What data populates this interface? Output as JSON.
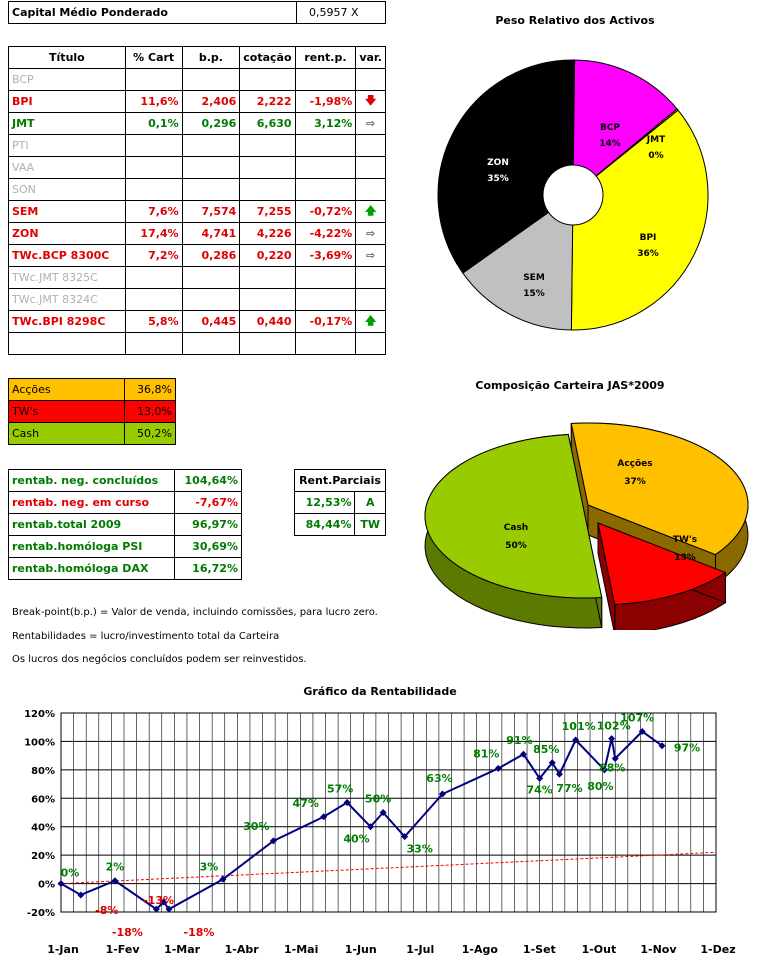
{
  "capital": {
    "label": "Capital Médio Ponderado",
    "value": "0,5957 X"
  },
  "portfolio_table": {
    "headers": [
      "Título",
      "% Cart",
      "b.p.",
      "cotação",
      "rent.p.",
      "var."
    ],
    "rows": [
      {
        "titulo": "BCP",
        "cart": "",
        "bp": "",
        "cotacao": "",
        "rent": "",
        "var": "",
        "color": "gray"
      },
      {
        "titulo": "BPI",
        "cart": "11,6%",
        "bp": "2,406",
        "cotacao": "2,222",
        "rent": "-1,98%",
        "var": "arrow-down",
        "color": "red"
      },
      {
        "titulo": "JMT",
        "cart": "0,1%",
        "bp": "0,296",
        "cotacao": "6,630",
        "rent": "3,12%",
        "var": "arrow-right",
        "color": "green"
      },
      {
        "titulo": "PTI",
        "cart": "",
        "bp": "",
        "cotacao": "",
        "rent": "",
        "var": "",
        "color": "gray"
      },
      {
        "titulo": "VAA",
        "cart": "",
        "bp": "",
        "cotacao": "",
        "rent": "",
        "var": "",
        "color": "gray"
      },
      {
        "titulo": "SON",
        "cart": "",
        "bp": "",
        "cotacao": "",
        "rent": "",
        "var": "",
        "color": "gray"
      },
      {
        "titulo": "SEM",
        "cart": "7,6%",
        "bp": "7,574",
        "cotacao": "7,255",
        "rent": "-0,72%",
        "var": "arrow-up",
        "color": "red"
      },
      {
        "titulo": "ZON",
        "cart": "17,4%",
        "bp": "4,741",
        "cotacao": "4,226",
        "rent": "-4,22%",
        "var": "arrow-right",
        "color": "red"
      },
      {
        "titulo": "TWc.BCP 8300C",
        "cart": "7,2%",
        "bp": "0,286",
        "cotacao": "0,220",
        "rent": "-3,69%",
        "var": "arrow-right",
        "color": "red"
      },
      {
        "titulo": "TWc.JMT 8325C",
        "cart": "",
        "bp": "",
        "cotacao": "",
        "rent": "",
        "var": "",
        "color": "gray"
      },
      {
        "titulo": "TWc.JMT 8324C",
        "cart": "",
        "bp": "",
        "cotacao": "",
        "rent": "",
        "var": "",
        "color": "gray"
      },
      {
        "titulo": "TWc.BPI 8298C",
        "cart": "5,8%",
        "bp": "0,445",
        "cotacao": "0,440",
        "rent": "-0,17%",
        "var": "arrow-up",
        "color": "red"
      },
      {
        "titulo": "",
        "cart": "",
        "bp": "",
        "cotacao": "",
        "rent": "",
        "var": "",
        "color": "gray"
      }
    ]
  },
  "allocation": [
    {
      "label": "Acções",
      "value": "36,8%",
      "bg": "#ffc000"
    },
    {
      "label": "TW's",
      "value": "13,0%",
      "bg": "#ff0000"
    },
    {
      "label": "Cash",
      "value": "50,2%",
      "bg": "#99cc00"
    }
  ],
  "returns": [
    {
      "label": "rentab. neg. concluídos",
      "value": "104,64%",
      "color": "green"
    },
    {
      "label": "rentab. neg. em curso",
      "value": "-7,67%",
      "color": "red"
    },
    {
      "label": "rentab.total 2009",
      "value": "96,97%",
      "color": "green"
    },
    {
      "label": "rentab.homóloga PSI",
      "value": "30,69%",
      "color": "green"
    },
    {
      "label": "rentab.homóloga DAX",
      "value": "16,72%",
      "color": "green"
    }
  ],
  "partials": {
    "header": "Rent.Parciais",
    "rows": [
      {
        "value": "12,53%",
        "code": "A"
      },
      {
        "value": "84,44%",
        "code": "TW"
      }
    ]
  },
  "notes": [
    "Break-point(b.p.) = Valor de venda, incluindo comissões, para lucro zero.",
    "Rentabilidades = lucro/investimento total da Carteira",
    "Os lucros dos negócios concluídos podem ser reinvestidos."
  ],
  "chart_data": [
    {
      "type": "pie",
      "title": "Peso Relativo dos Activos",
      "style": "doughnut",
      "categories": [
        "BCP",
        "JMT",
        "BPI",
        "SEM",
        "ZON"
      ],
      "values": [
        14,
        0,
        36,
        15,
        35
      ],
      "labels": [
        "14%",
        "0%",
        "36%",
        "15%",
        "35%"
      ],
      "colors": [
        "#ff00ff",
        "#99cc00",
        "#ffff00",
        "#c0c0c0",
        "#000000"
      ]
    },
    {
      "type": "pie",
      "title": "Composição Carteira JAS*2009",
      "style": "3d-exploded",
      "categories": [
        "Acções",
        "TW's",
        "Cash"
      ],
      "values": [
        37,
        13,
        50
      ],
      "labels": [
        "37%",
        "13%",
        "50%"
      ],
      "colors": [
        "#ffc000",
        "#ff0000",
        "#99cc00"
      ]
    },
    {
      "type": "line",
      "title": "Gráfico da Rentabilidade",
      "x_ticks": [
        "1-Jan",
        "1-Fev",
        "1-Mar",
        "1-Abr",
        "1-Mai",
        "1-Jun",
        "1-Jul",
        "1-Ago",
        "1-Set",
        "1-Out",
        "1-Nov",
        "1-Dez"
      ],
      "y_ticks": [
        "-20%",
        "0%",
        "20%",
        "40%",
        "60%",
        "80%",
        "100%",
        "120%"
      ],
      "ylim": [
        -20,
        120
      ],
      "grid": true,
      "series": [
        {
          "color": "#000080",
          "points": [
            {
              "x": "2009-01-01",
              "y": 0,
              "label": "0%"
            },
            {
              "x": "2009-01-12",
              "y": -8,
              "label": "-8%"
            },
            {
              "x": "2009-01-31",
              "y": 2,
              "label": "2%"
            },
            {
              "x": "2009-02-23",
              "y": -18,
              "label": "-18%"
            },
            {
              "x": "2009-02-27",
              "y": -13,
              "label": "-13%"
            },
            {
              "x": "2009-03-02",
              "y": -18,
              "label": "-18%"
            },
            {
              "x": "2009-04-01",
              "y": 3,
              "label": "3%"
            },
            {
              "x": "2009-04-29",
              "y": 30,
              "label": "30%"
            },
            {
              "x": "2009-05-27",
              "y": 47,
              "label": "47%"
            },
            {
              "x": "2009-06-09",
              "y": 57,
              "label": "57%"
            },
            {
              "x": "2009-06-22",
              "y": 40,
              "label": "40%"
            },
            {
              "x": "2009-06-29",
              "y": 50,
              "label": "50%"
            },
            {
              "x": "2009-07-11",
              "y": 33,
              "label": "33%"
            },
            {
              "x": "2009-08-01",
              "y": 63,
              "label": "63%"
            },
            {
              "x": "2009-09-01",
              "y": 81,
              "label": "81%"
            },
            {
              "x": "2009-09-15",
              "y": 91,
              "label": "91%"
            },
            {
              "x": "2009-09-24",
              "y": 74,
              "label": "74%"
            },
            {
              "x": "2009-10-01",
              "y": 85,
              "label": "85%"
            },
            {
              "x": "2009-10-05",
              "y": 77,
              "label": "77%"
            },
            {
              "x": "2009-10-14",
              "y": 101,
              "label": "101%"
            },
            {
              "x": "2009-10-30",
              "y": 80,
              "label": "80%"
            },
            {
              "x": "2009-11-03",
              "y": 102,
              "label": "102%"
            },
            {
              "x": "2009-11-05",
              "y": 88,
              "label": "88%"
            },
            {
              "x": "2009-11-20",
              "y": 107,
              "label": "107%"
            },
            {
              "x": "2009-12-01",
              "y": 97,
              "label": "97%"
            }
          ]
        },
        {
          "color": "#ff0000",
          "style": "dashed",
          "points": [
            {
              "x": "2009-01-01",
              "y": 0
            },
            {
              "x": "2009-12-31",
              "y": 22
            }
          ]
        }
      ]
    }
  ]
}
